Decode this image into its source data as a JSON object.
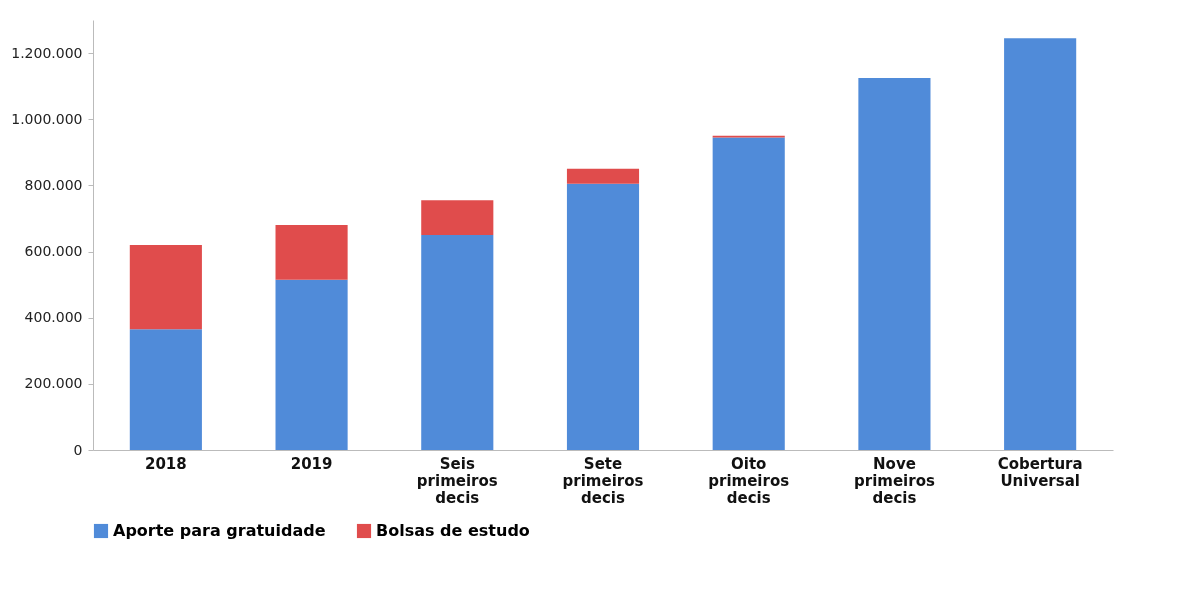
{
  "chart_data": {
    "type": "bar",
    "stacked": true,
    "categories": [
      "2018",
      "2019",
      "Seis primeiros decis",
      "Sete primeiros decis",
      "Oito primeiros decis",
      "Nove primeiros decis",
      "Cobertura Universal"
    ],
    "series": [
      {
        "name": "Aporte para gratuidade",
        "color": "#508bd9",
        "values": [
          365000,
          515000,
          650000,
          805000,
          945000,
          1125000,
          1245000
        ]
      },
      {
        "name": "Bolsas de estudo",
        "color": "#e04c4c",
        "values": [
          255000,
          165000,
          105000,
          45000,
          5000,
          0,
          0
        ]
      }
    ],
    "ylim": [
      0,
      1300000
    ],
    "yticks": [
      0,
      {
        "value": 200000,
        "label": "200.000"
      },
      {
        "value": 400000,
        "label": "400.000"
      },
      {
        "value": 600000,
        "label": "600.000"
      },
      {
        "value": 800000,
        "label": "800.000"
      },
      {
        "value": 1000000,
        "label": "1.000.000"
      },
      {
        "value": 1200000,
        "label": "1.200.000"
      }
    ],
    "grid": false,
    "legend": "bottom"
  }
}
